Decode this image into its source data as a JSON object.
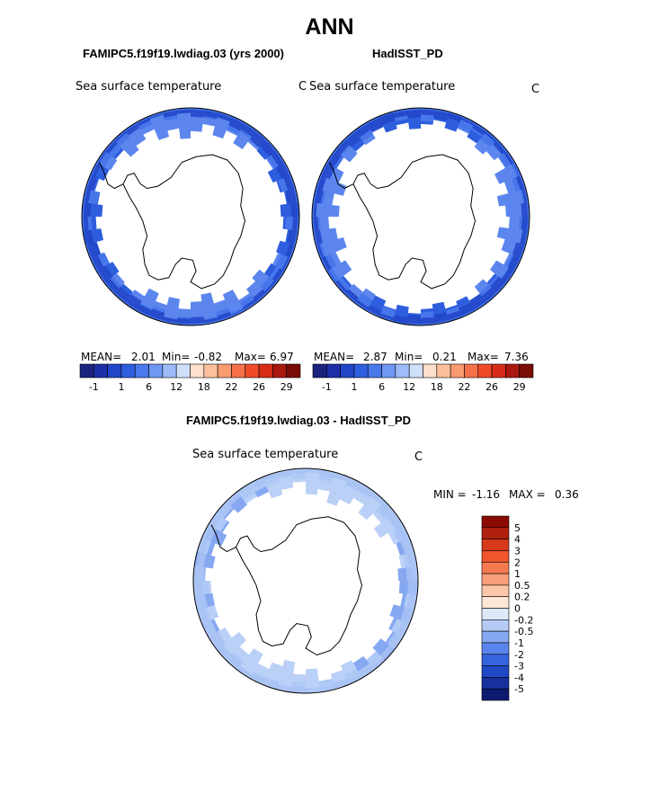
{
  "page_title": "ANN",
  "chart_data": [
    {
      "type": "heatmap",
      "title": "FAMIPC5.f19f19.lwdiag.03 (yrs 2000)",
      "field": "Sea surface temperature",
      "units": "C",
      "projection": "south-polar stereographic",
      "stats": {
        "mean_label": "MEAN=",
        "mean": "2.01",
        "min_label": "Min=",
        "min": "-0.82",
        "max_label": "Max=",
        "max": "6.97"
      },
      "colorbar": {
        "levels": [
          "-1",
          "1",
          "6",
          "12",
          "18",
          "22",
          "26",
          "29"
        ],
        "colors": [
          "#1a237e",
          "#1c2fa8",
          "#2145c8",
          "#2e5ede",
          "#4a79ec",
          "#6f98f4",
          "#9dbbf7",
          "#cfe0fb",
          "#fde0cc",
          "#fbbf9c",
          "#f99a70",
          "#f6704a",
          "#ef4a2a",
          "#d62c18",
          "#a8180e",
          "#7a0c06"
        ]
      }
    },
    {
      "type": "heatmap",
      "title": "HadISST_PD",
      "field": "Sea surface temperature",
      "units": "C",
      "projection": "south-polar stereographic",
      "stats": {
        "mean_label": "MEAN=",
        "mean": "2.87",
        "min_label": "Min=",
        "min": "0.21",
        "max_label": "Max=",
        "max": "7.36"
      },
      "colorbar": {
        "levels": [
          "-1",
          "1",
          "6",
          "12",
          "18",
          "22",
          "26",
          "29"
        ],
        "colors": [
          "#1a237e",
          "#1c2fa8",
          "#2145c8",
          "#2e5ede",
          "#4a79ec",
          "#6f98f4",
          "#9dbbf7",
          "#cfe0fb",
          "#fde0cc",
          "#fbbf9c",
          "#f99a70",
          "#f6704a",
          "#ef4a2a",
          "#d62c18",
          "#a8180e",
          "#7a0c06"
        ]
      }
    },
    {
      "type": "heatmap",
      "title": "FAMIPC5.f19f19.lwdiag.03 - HadISST_PD",
      "field": "Sea surface temperature",
      "units": "C",
      "projection": "south-polar stereographic",
      "stats": {
        "min_label": "MIN =",
        "min": "-1.16",
        "max_label": "MAX =",
        "max": "0.36"
      },
      "colorbar": {
        "levels": [
          "5",
          "4",
          "3",
          "2",
          "1",
          "0.5",
          "0.2",
          "0",
          "-0.2",
          "-0.5",
          "-1",
          "-2",
          "-3",
          "-4",
          "-5"
        ],
        "colors": [
          "#8b0b04",
          "#b0200e",
          "#d8381a",
          "#f0552c",
          "#f57a50",
          "#f9a07a",
          "#fcc6a8",
          "#fde6d6",
          "#dde9fb",
          "#b4cbf6",
          "#86a8f1",
          "#5a84ea",
          "#3564df",
          "#2049c6",
          "#16309d",
          "#0d1b6e"
        ]
      }
    }
  ]
}
